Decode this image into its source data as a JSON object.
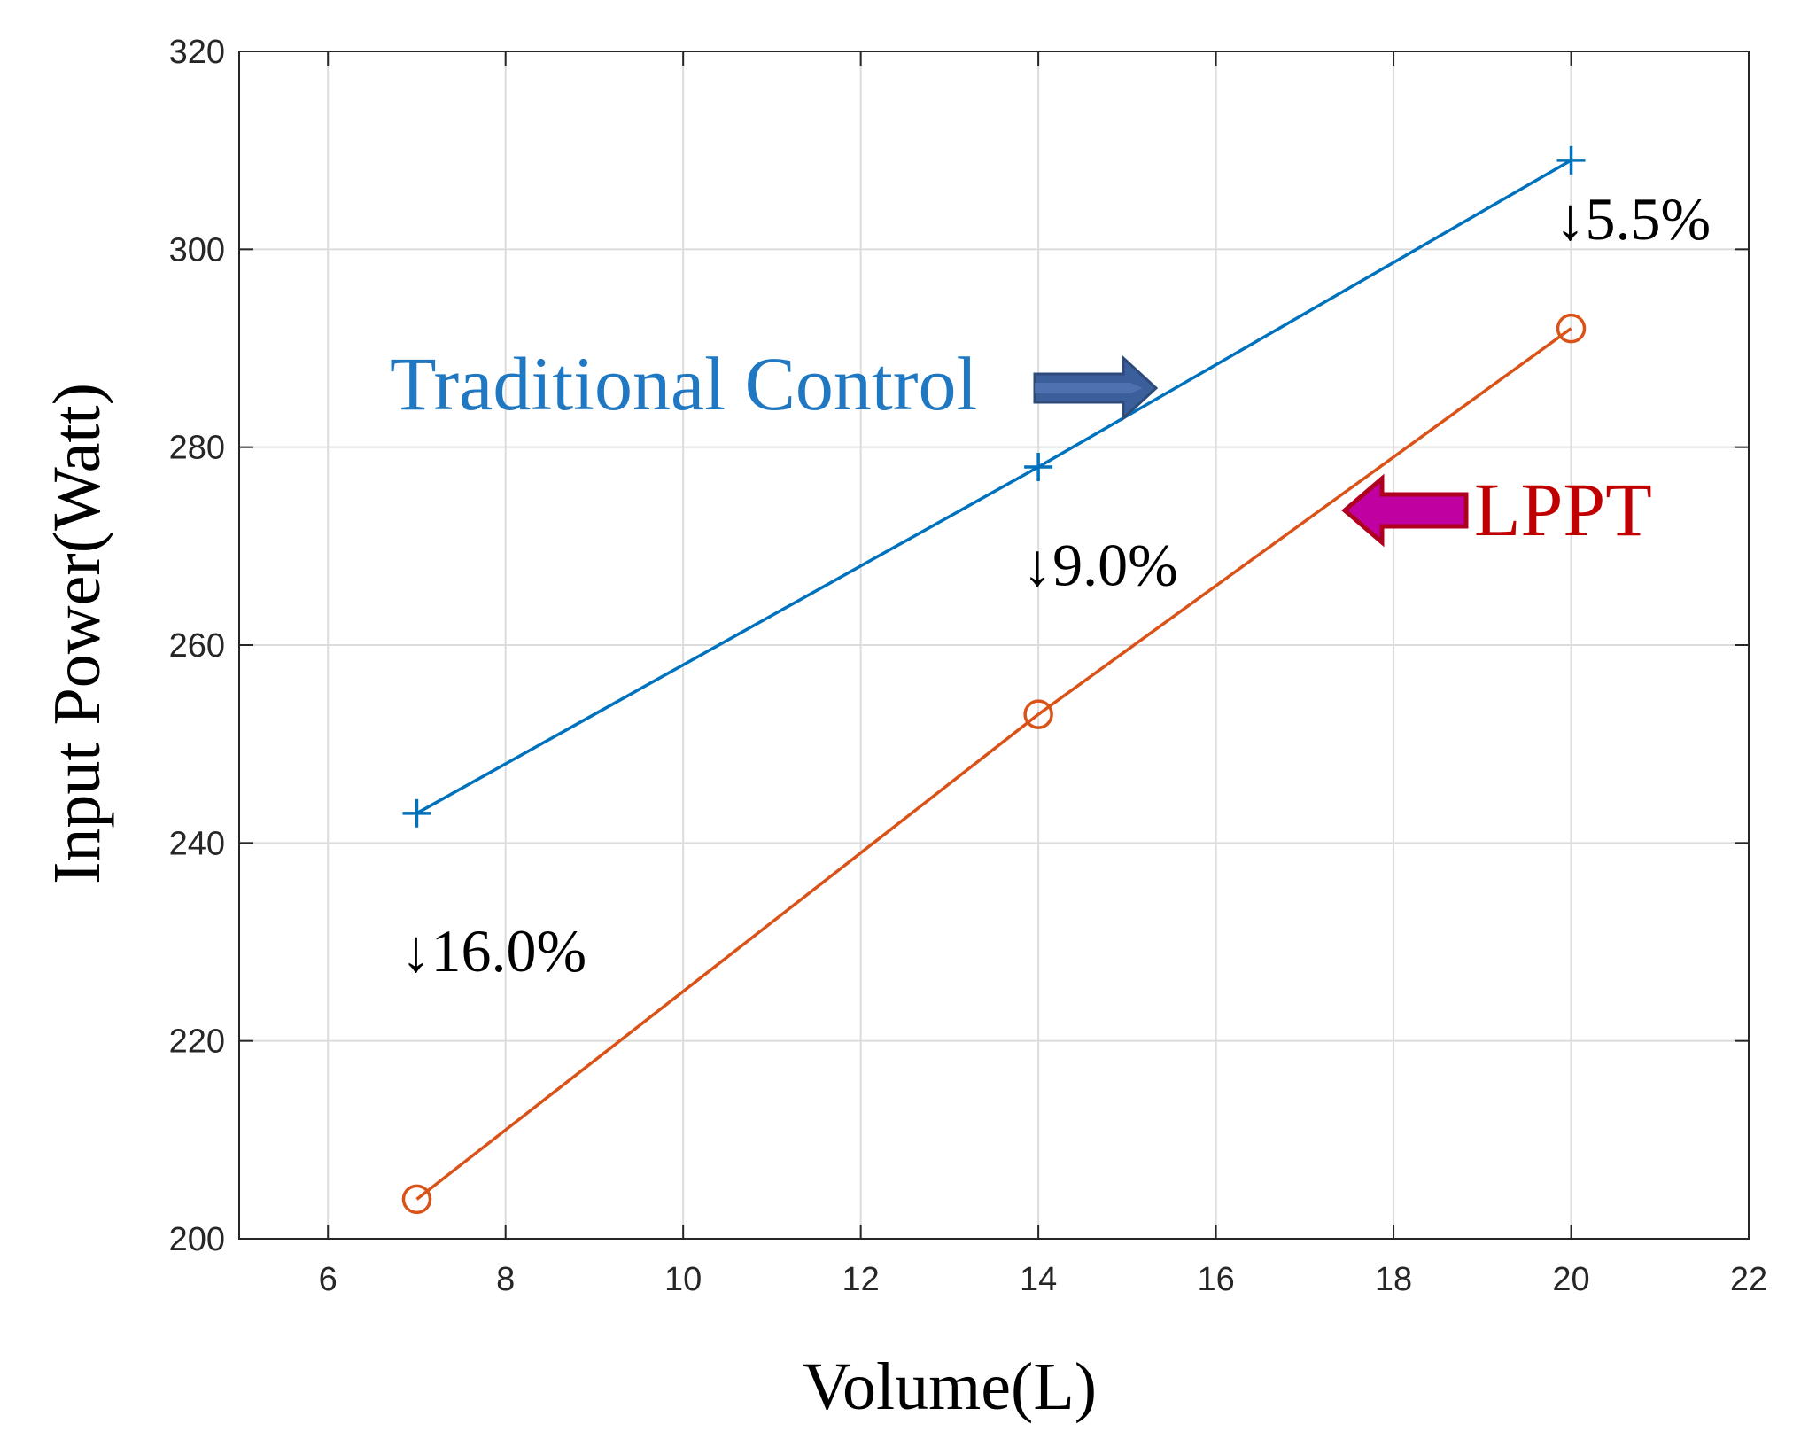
{
  "chart_data": {
    "type": "line",
    "title": "",
    "xlabel": "Volume(L)",
    "ylabel": "Input Power(Watt)",
    "xlim": [
      5,
      22
    ],
    "ylim": [
      200,
      320
    ],
    "xticks": [
      6,
      8,
      10,
      12,
      14,
      16,
      18,
      20,
      22
    ],
    "yticks": [
      200,
      220,
      240,
      260,
      280,
      300,
      320
    ],
    "grid": true,
    "x": [
      7,
      14,
      20
    ],
    "series": [
      {
        "name": "Traditional Control",
        "values": [
          243,
          278,
          309
        ],
        "color": "#0072BD",
        "marker": "plus"
      },
      {
        "name": "LPPT",
        "values": [
          204,
          253,
          292
        ],
        "color": "#D95319",
        "marker": "circle"
      }
    ],
    "annotations": [
      {
        "text": "↓16.0%",
        "x": 7,
        "y": 229
      },
      {
        "text": "↓9.0%",
        "x": 14,
        "y": 268
      },
      {
        "text": "↓5.5%",
        "x": 20,
        "y": 303
      }
    ],
    "series_labels": [
      {
        "text": "Traditional Control",
        "color": "#1F78C1",
        "arrow_color": "#3A5F9A",
        "arrow_direction": "right"
      },
      {
        "text": "LPPT",
        "color": "#C00000",
        "arrow_color": "#B00020",
        "arrow_fill": "#C000A0",
        "arrow_direction": "left"
      }
    ]
  }
}
